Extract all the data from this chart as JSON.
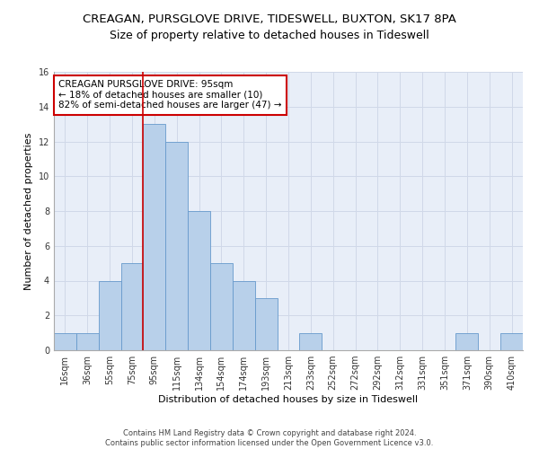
{
  "title": "CREAGAN, PURSGLOVE DRIVE, TIDESWELL, BUXTON, SK17 8PA",
  "subtitle": "Size of property relative to detached houses in Tideswell",
  "xlabel": "Distribution of detached houses by size in Tideswell",
  "ylabel": "Number of detached properties",
  "categories": [
    "16sqm",
    "36sqm",
    "55sqm",
    "75sqm",
    "95sqm",
    "115sqm",
    "134sqm",
    "154sqm",
    "174sqm",
    "193sqm",
    "213sqm",
    "233sqm",
    "252sqm",
    "272sqm",
    "292sqm",
    "312sqm",
    "331sqm",
    "351sqm",
    "371sqm",
    "390sqm",
    "410sqm"
  ],
  "values": [
    1,
    1,
    4,
    5,
    13,
    12,
    8,
    5,
    4,
    3,
    0,
    1,
    0,
    0,
    0,
    0,
    0,
    0,
    1,
    0,
    1
  ],
  "bar_color": "#b8d0ea",
  "bar_edge_color": "#6699cc",
  "highlight_index": 4,
  "highlight_line_color": "#cc0000",
  "annotation_text": "CREAGAN PURSGLOVE DRIVE: 95sqm\n← 18% of detached houses are smaller (10)\n82% of semi-detached houses are larger (47) →",
  "annotation_box_color": "#ffffff",
  "annotation_box_edge_color": "#cc0000",
  "ylim": [
    0,
    16
  ],
  "yticks": [
    0,
    2,
    4,
    6,
    8,
    10,
    12,
    14,
    16
  ],
  "grid_color": "#d0d8e8",
  "background_color": "#e8eef8",
  "footer_line1": "Contains HM Land Registry data © Crown copyright and database right 2024.",
  "footer_line2": "Contains public sector information licensed under the Open Government Licence v3.0.",
  "title_fontsize": 9.5,
  "subtitle_fontsize": 9,
  "xlabel_fontsize": 8,
  "ylabel_fontsize": 8,
  "tick_fontsize": 7,
  "annotation_fontsize": 7.5,
  "footer_fontsize": 6
}
